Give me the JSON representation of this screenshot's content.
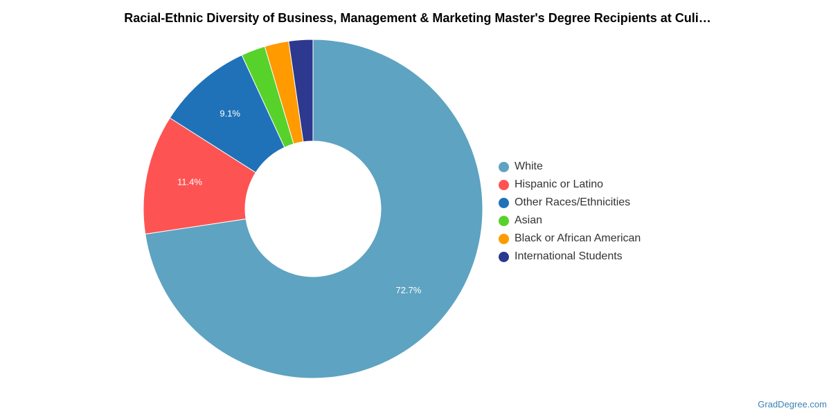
{
  "title": "Racial-Ethnic Diversity of Business, Management & Marketing Master's Degree Recipients at Culi…",
  "watermark": "GradDegree.com",
  "chart_data": {
    "type": "pie",
    "donut": true,
    "title": "Racial-Ethnic Diversity of Business, Management & Marketing Master's Degree Recipients at Culi…",
    "legend_placement": "right",
    "series": [
      {
        "name": "White",
        "value": 72.7,
        "label": "72.7%",
        "color": "#5ea3c1"
      },
      {
        "name": "Hispanic or Latino",
        "value": 11.4,
        "label": "11.4%",
        "color": "#fe5353"
      },
      {
        "name": "Other Races/Ethnicities",
        "value": 9.1,
        "label": "9.1%",
        "color": "#1f72b8"
      },
      {
        "name": "Asian",
        "value": 2.3,
        "label": "",
        "color": "#57d22b"
      },
      {
        "name": "Black or African American",
        "value": 2.3,
        "label": "",
        "color": "#ff9a00"
      },
      {
        "name": "International Students",
        "value": 2.3,
        "label": "",
        "color": "#2d388f"
      }
    ]
  }
}
